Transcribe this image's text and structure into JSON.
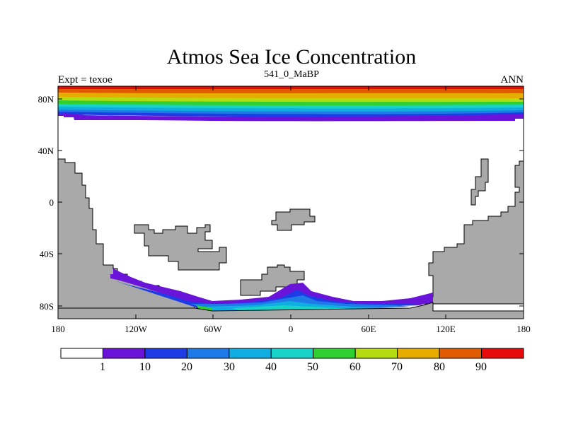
{
  "title": "Atmos Sea Ice Concentration",
  "subtitle": "541_0_MaBP",
  "left_label": "Expt = texoe",
  "right_label": "ANN",
  "y_ticks": [
    "80N",
    "40N",
    "0",
    "40S",
    "80S"
  ],
  "x_ticks": [
    "180",
    "120W",
    "60W",
    "0",
    "60E",
    "120E",
    "180"
  ],
  "colorbar": {
    "labels": [
      "1",
      "10",
      "20",
      "30",
      "40",
      "50",
      "60",
      "70",
      "80",
      "90"
    ],
    "colors": [
      "#ffffff",
      "#6a14d9",
      "#1e3ce6",
      "#1e7ae6",
      "#10aee0",
      "#18d2c8",
      "#30d030",
      "#b4dc10",
      "#e6ac00",
      "#e05a00",
      "#e60a0a"
    ]
  },
  "land_color": "#a9a9a9",
  "chart_data": {
    "type": "heatmap",
    "variable": "Atmos Sea Ice Concentration",
    "experiment": "texoe",
    "period": "541_0_MaBP",
    "season": "ANN",
    "x_range": [
      -180,
      180
    ],
    "y_range": [
      -90,
      90
    ],
    "contour_levels": [
      1,
      10,
      20,
      30,
      40,
      50,
      60,
      70,
      80,
      90
    ]
  }
}
